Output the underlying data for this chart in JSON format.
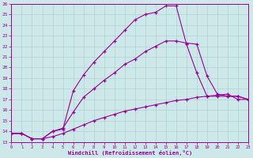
{
  "xlabel": "Windchill (Refroidissement éolien,°C)",
  "background_color": "#cce8e8",
  "line_color": "#990099",
  "xlim": [
    0,
    23
  ],
  "ylim": [
    13,
    26
  ],
  "xticks": [
    0,
    1,
    2,
    3,
    4,
    5,
    6,
    7,
    8,
    9,
    10,
    11,
    12,
    13,
    14,
    15,
    16,
    17,
    18,
    19,
    20,
    21,
    22,
    23
  ],
  "yticks": [
    13,
    14,
    15,
    16,
    17,
    18,
    19,
    20,
    21,
    22,
    23,
    24,
    25,
    26
  ],
  "series": [
    {
      "x": [
        0,
        1,
        2,
        3,
        4,
        5,
        6,
        7,
        8,
        9,
        10,
        11,
        12,
        13,
        14,
        15,
        16,
        17,
        18,
        19,
        20,
        21,
        22,
        23
      ],
      "y": [
        13.8,
        13.8,
        13.3,
        13.3,
        14.0,
        14.2,
        17.8,
        19.3,
        20.5,
        21.5,
        22.5,
        23.5,
        24.5,
        25.0,
        25.2,
        25.8,
        25.8,
        22.2,
        19.5,
        17.3,
        17.3,
        17.3,
        17.3,
        17.0
      ]
    },
    {
      "x": [
        0,
        1,
        2,
        3,
        4,
        5,
        6,
        7,
        8,
        9,
        10,
        11,
        12,
        13,
        14,
        15,
        16,
        17,
        18,
        19,
        20,
        21,
        22,
        23
      ],
      "y": [
        13.8,
        13.8,
        13.3,
        13.3,
        14.0,
        14.3,
        15.8,
        17.2,
        18.0,
        18.8,
        19.5,
        20.3,
        20.8,
        21.5,
        22.0,
        22.5,
        22.5,
        22.3,
        22.2,
        19.2,
        17.5,
        17.3,
        17.3,
        17.0
      ]
    },
    {
      "x": [
        0,
        1,
        2,
        3,
        4,
        5,
        6,
        7,
        8,
        9,
        10,
        11,
        12,
        13,
        14,
        15,
        16,
        17,
        18,
        19,
        20,
        21,
        22,
        23
      ],
      "y": [
        13.8,
        13.8,
        13.3,
        13.3,
        13.5,
        13.8,
        14.2,
        14.6,
        15.0,
        15.3,
        15.6,
        15.9,
        16.1,
        16.3,
        16.5,
        16.7,
        16.9,
        17.0,
        17.2,
        17.3,
        17.4,
        17.5,
        17.0,
        17.0
      ]
    }
  ]
}
